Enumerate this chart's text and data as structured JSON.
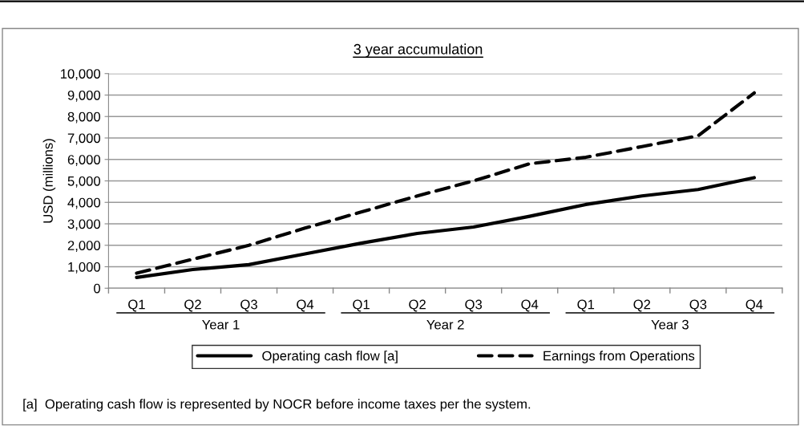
{
  "chart_data": {
    "type": "line",
    "title": "3 year accumulation",
    "ylabel": "USD (millions)",
    "categories": [
      "Q1",
      "Q2",
      "Q3",
      "Q4",
      "Q1",
      "Q2",
      "Q3",
      "Q4",
      "Q1",
      "Q2",
      "Q3",
      "Q4"
    ],
    "series": [
      {
        "name": "Operating cash flow [a]",
        "color": "#000000",
        "line_style": "solid",
        "values": [
          500,
          870,
          1100,
          1600,
          2100,
          2550,
          2850,
          3350,
          3900,
          4300,
          4600,
          5150
        ]
      },
      {
        "name": "Earnings from Operations",
        "color": "#000000",
        "line_style": "dashed",
        "values": [
          700,
          1350,
          2000,
          2800,
          3550,
          4300,
          5000,
          5800,
          6100,
          6600,
          7100,
          9100
        ]
      }
    ],
    "ylim": [
      0,
      10000
    ],
    "yticks": [
      {
        "value": 0,
        "label": "0"
      },
      {
        "value": 1000,
        "label": "1,000"
      },
      {
        "value": 2000,
        "label": "2,000"
      },
      {
        "value": 3000,
        "label": "3,000"
      },
      {
        "value": 4000,
        "label": "4,000"
      },
      {
        "value": 5000,
        "label": "5,000"
      },
      {
        "value": 6000,
        "label": "6,000"
      },
      {
        "value": 7000,
        "label": "7,000"
      },
      {
        "value": 8000,
        "label": "8,000"
      },
      {
        "value": 9000,
        "label": "9,000"
      },
      {
        "value": 10000,
        "label": "10,000"
      }
    ],
    "grid": "y",
    "legend": "bottom",
    "marker": "none",
    "annotations": [
      "Year 1",
      "Year 2",
      "Year 3",
      "[a]  Operating cash flow is represented by NOCR before income taxes per the system."
    ]
  }
}
